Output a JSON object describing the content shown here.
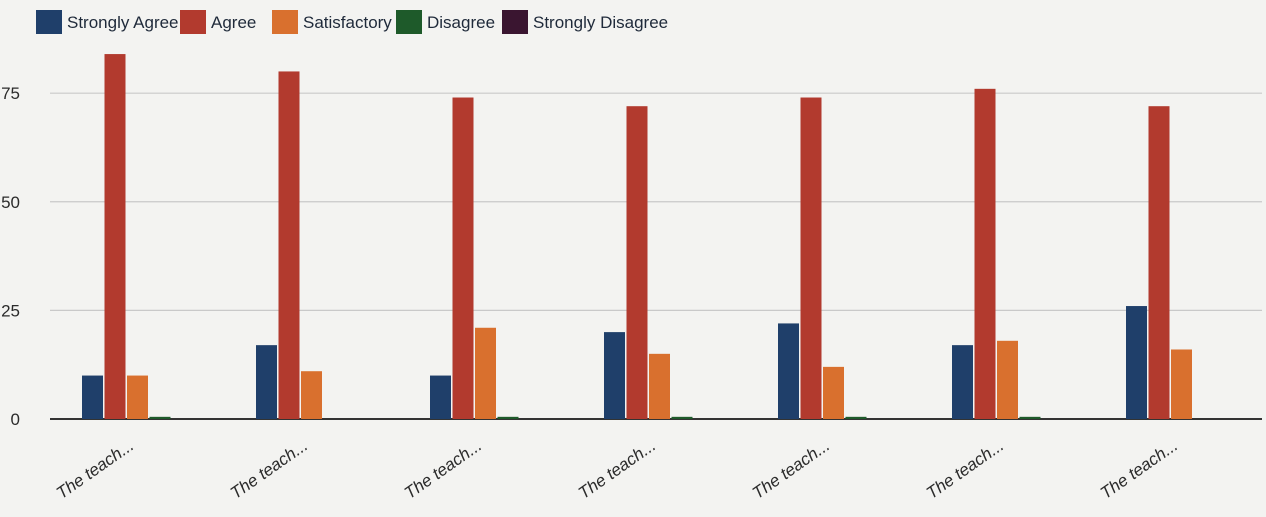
{
  "chart_data": {
    "type": "bar",
    "categories": [
      "The teach...",
      "The teach...",
      "The teach...",
      "The teach...",
      "The teach...",
      "The teach...",
      "The teach..."
    ],
    "series": [
      {
        "name": "Strongly Agree",
        "color": "#1f3f6a",
        "values": [
          10,
          17,
          10,
          20,
          22,
          17,
          26
        ]
      },
      {
        "name": "Agree",
        "color": "#b23a2e",
        "values": [
          84,
          80,
          74,
          72,
          74,
          76,
          72
        ]
      },
      {
        "name": "Satisfactory",
        "color": "#d9702e",
        "values": [
          10,
          11,
          21,
          15,
          12,
          18,
          16
        ]
      },
      {
        "name": "Disagree",
        "color": "#1e5a2a",
        "values": [
          0.5,
          0,
          0.5,
          0.5,
          0.5,
          0.5,
          0
        ]
      },
      {
        "name": "Strongly Disagree",
        "color": "#3a1530",
        "values": [
          0,
          0,
          0,
          0,
          0,
          0,
          0
        ]
      }
    ],
    "yticks": [
      "0",
      "25",
      "50",
      "75"
    ],
    "ylim": [
      0,
      90
    ],
    "grid": true,
    "legend_position": "top-left",
    "title": "",
    "xlabel": "",
    "ylabel": ""
  }
}
